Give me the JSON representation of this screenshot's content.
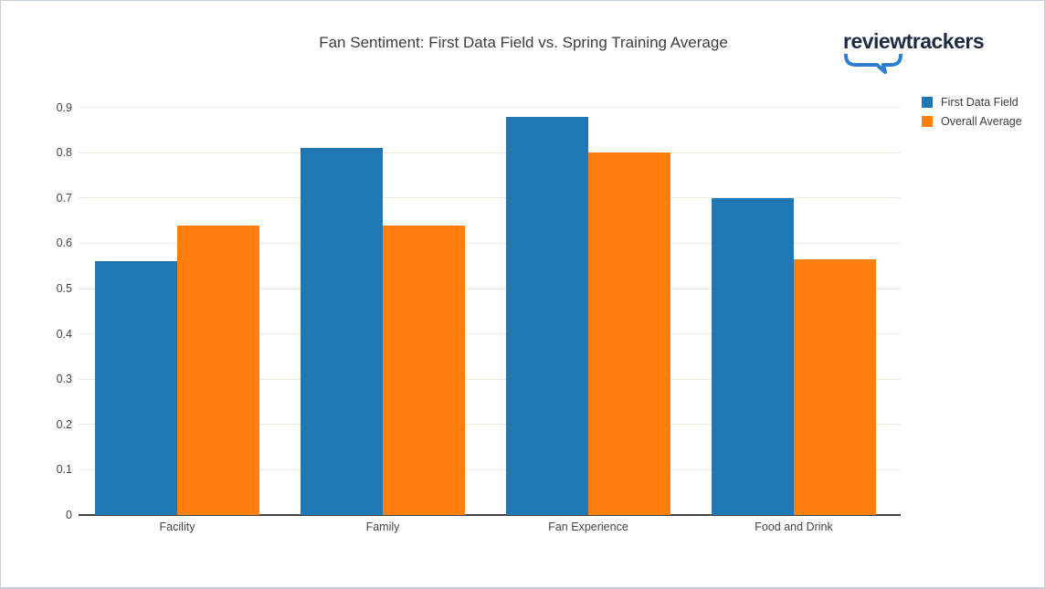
{
  "page": {
    "logo_text": "reviewtrackers"
  },
  "logo": {
    "bubble_color": "#2d7ed3"
  },
  "chart_data": {
    "type": "bar",
    "title": "Fan Sentiment: First Data Field vs. Spring Training Average",
    "categories": [
      "Facility",
      "Family",
      "Fan Experience",
      "Food and Drink"
    ],
    "series": [
      {
        "name": "First Data Field",
        "color": "#1f77b4",
        "values": [
          0.56,
          0.81,
          0.88,
          0.7
        ]
      },
      {
        "name": "Overall Average",
        "color": "#ff7f0e",
        "values": [
          0.64,
          0.64,
          0.8,
          0.565
        ]
      }
    ],
    "xlabel": "",
    "ylabel": "",
    "ylim": [
      0,
      0.95
    ],
    "yticks": [
      0,
      0.1,
      0.2,
      0.3,
      0.4,
      0.5,
      0.6,
      0.7,
      0.8,
      0.9
    ],
    "ytick_labels": [
      "0",
      "0.1",
      "0.2",
      "0.3",
      "0.4",
      "0.5",
      "0.6",
      "0.7",
      "0.8",
      "0.9"
    ],
    "grid": true,
    "legend_position": "top-right"
  }
}
